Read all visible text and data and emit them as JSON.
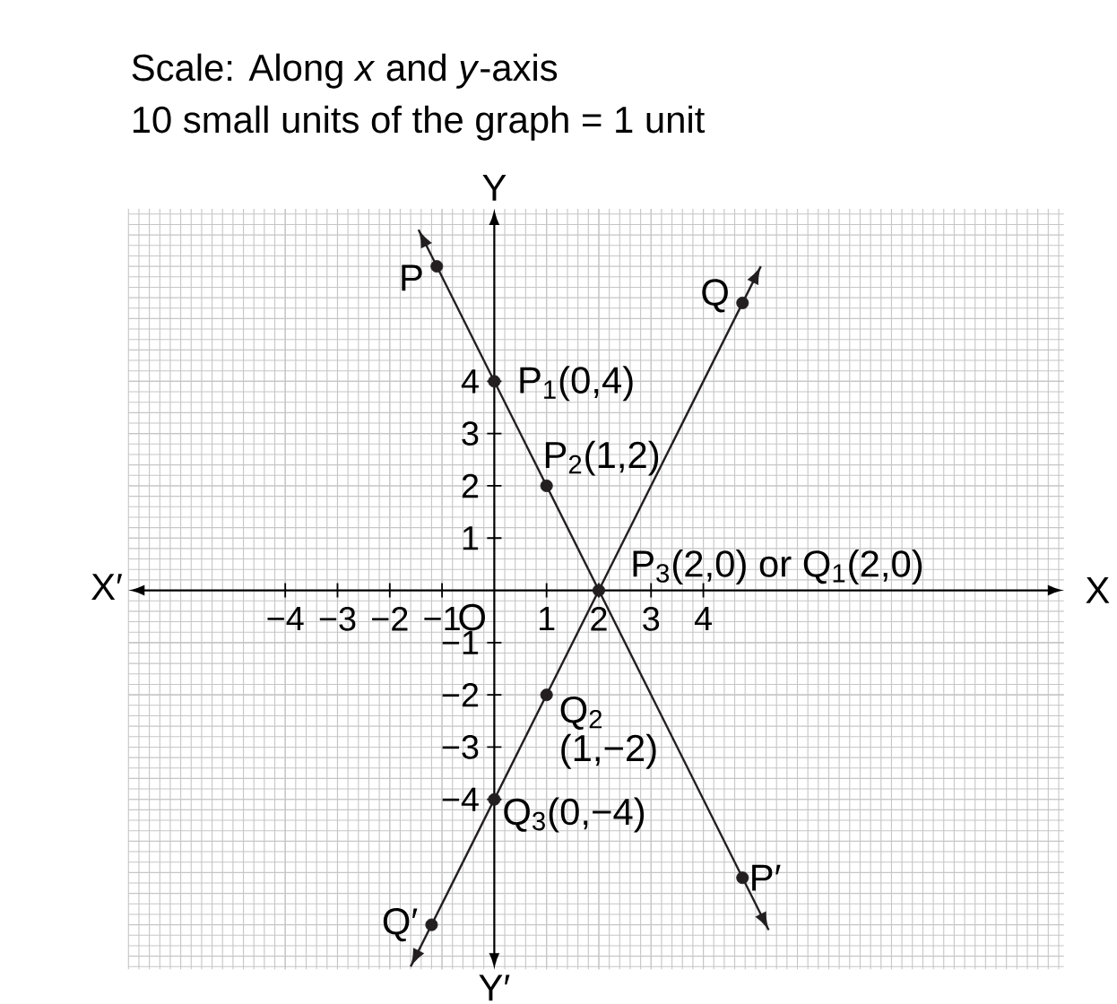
{
  "chart_data": {
    "type": "line",
    "title": "Scale: Along *x* and *y*-axis",
    "subtitle": "10 small units of the graph = 1 unit",
    "xlabel": "X",
    "ylabel": "Y",
    "annotations": [
      "X′",
      "Y′",
      "O",
      {
        "text": "P",
        "x": -1.1,
        "y": 6.2
      },
      {
        "text": "Q",
        "x": 4.75,
        "y": 5.5
      },
      {
        "text": "P$_{1}$(0,4)",
        "x": 0,
        "y": 4
      },
      {
        "text": "P$_{2}$(1,2)",
        "x": 1,
        "y": 2
      },
      {
        "text": "P$_{3}$(2,0) or Q$_{1}$(2,0)",
        "x": 2,
        "y": 0
      },
      {
        "text": "Q$_{2}$ (1,−2)",
        "x": 1,
        "y": -2
      },
      {
        "text": "Q$_{3}$(0,−4)",
        "x": 0,
        "y": -4
      },
      {
        "text": "P′",
        "x": 4.75,
        "y": -5.5
      },
      {
        "text": "Q′",
        "x": -1.2,
        "y": -6.4
      }
    ],
    "series": [
      {
        "color": "#231f20",
        "x": [
          -1.45,
          5.25
        ],
        "values": [
          6.9,
          -6.5
        ]
      },
      {
        "color": "#231f20",
        "x": [
          -1.6,
          5.1
        ],
        "values": [
          -7.2,
          6.2
        ]
      },
      {
        "type": "scatter",
        "color": "#231f20",
        "marker": "circle",
        "x": [
          -1.1,
          0,
          1,
          2,
          4.75,
          4.75,
          1,
          0,
          -1.2
        ],
        "values": [
          6.2,
          4,
          2,
          0,
          -5.5,
          5.5,
          -2,
          -4,
          -6.4
        ]
      }
    ],
    "xlim": [
      -7,
      10.9
    ],
    "ylim": [
      -7.25,
      7.3
    ],
    "xticks": [
      {
        "value": -4,
        "label": "−4"
      },
      {
        "value": -3,
        "label": "−3"
      },
      {
        "value": -2,
        "label": "−2"
      },
      {
        "value": -1,
        "label": "−1"
      },
      1,
      2,
      3,
      4
    ],
    "yticks": [
      {
        "value": -4,
        "label": "−4"
      },
      {
        "value": -3,
        "label": "−3"
      },
      {
        "value": -2,
        "label": "−2"
      },
      {
        "value": -1,
        "label": "−1"
      },
      1,
      2,
      3,
      4
    ],
    "grid": true
  }
}
